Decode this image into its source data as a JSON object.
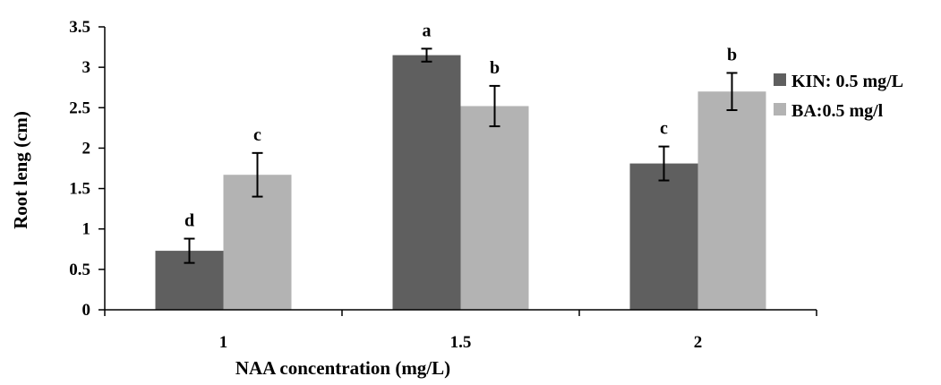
{
  "chart_data": {
    "type": "bar",
    "title": "",
    "xlabel": "NAA concentration (mg/L)",
    "ylabel": "Root leng (cm)",
    "categories": [
      "1",
      "1.5",
      "2"
    ],
    "ylim": [
      0,
      3.5
    ],
    "yticks": [
      "0",
      "0.5",
      "1",
      "1.5",
      "2",
      "2.5",
      "3",
      "3.5"
    ],
    "grid": false,
    "legend_position": "right",
    "series": [
      {
        "name": "KIN: 0.5 mg/L",
        "color": "#5f5f5f",
        "values": [
          0.73,
          3.15,
          1.81
        ],
        "errors": [
          0.15,
          0.08,
          0.21
        ],
        "letters": [
          "d",
          "a",
          "c"
        ]
      },
      {
        "name": "BA:0.5 mg/l",
        "color": "#b3b3b3",
        "values": [
          1.67,
          2.52,
          2.7
        ],
        "errors": [
          0.27,
          0.25,
          0.23
        ],
        "letters": [
          "c",
          "b",
          "b"
        ]
      }
    ]
  }
}
